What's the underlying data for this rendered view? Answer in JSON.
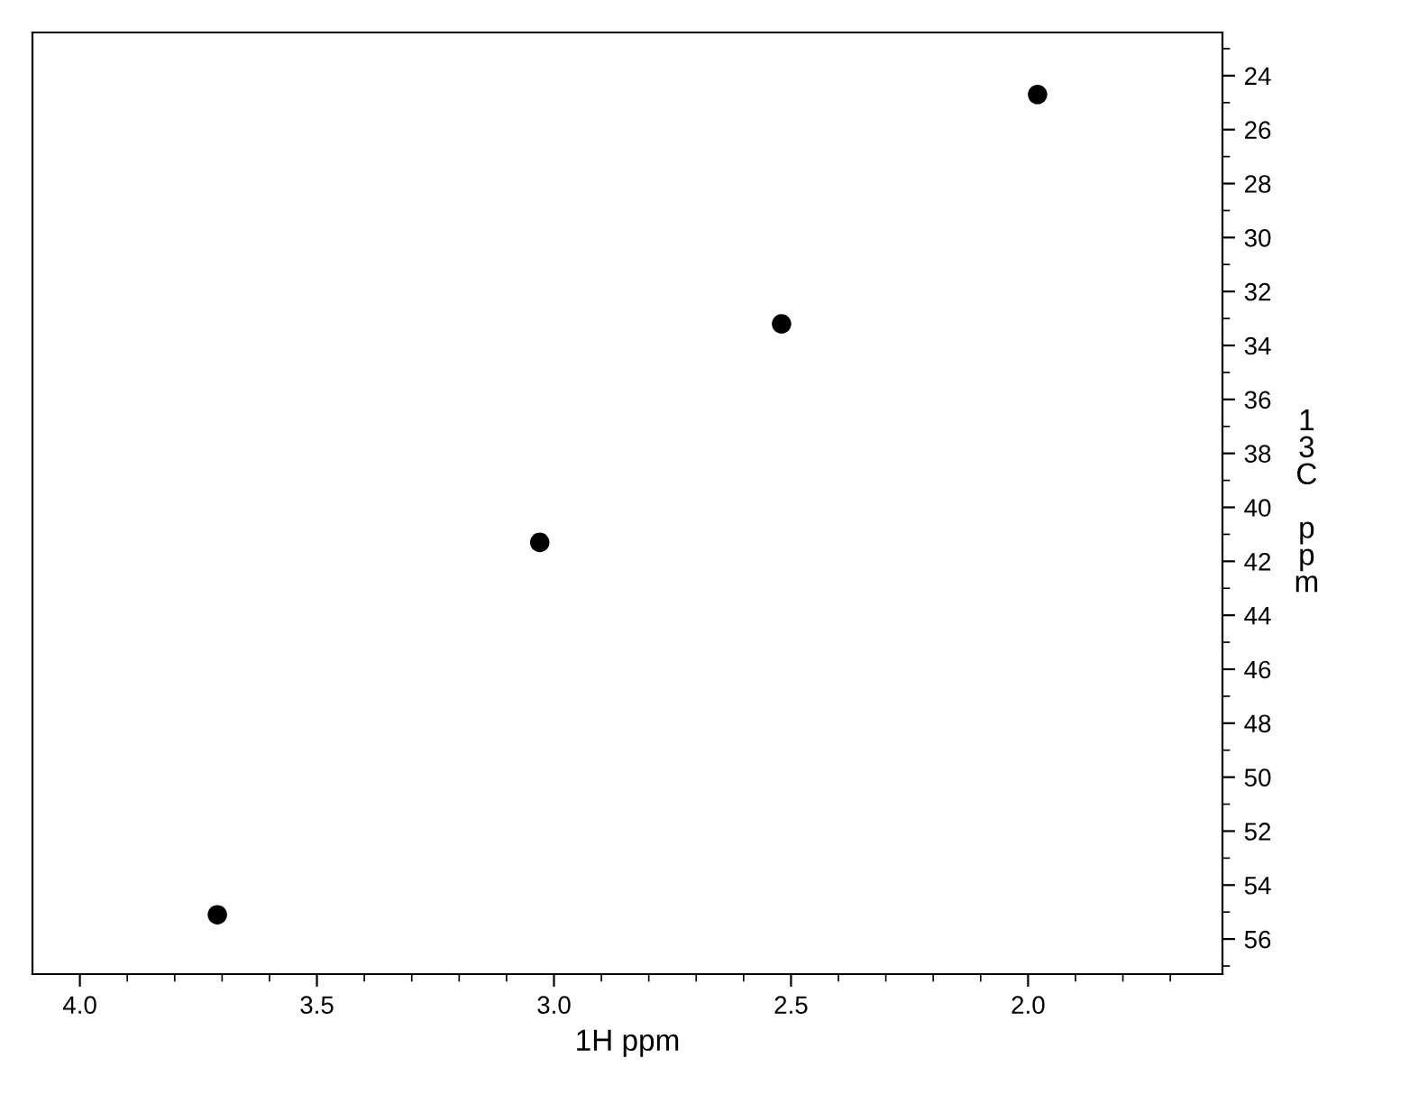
{
  "chart_data": {
    "type": "scatter",
    "xlabel": "1H ppm",
    "ylabel": "13C ppm",
    "x": [
      1.98,
      2.52,
      3.03,
      3.71
    ],
    "values": [
      24.7,
      33.2,
      41.3,
      55.1
    ],
    "color": "#000000",
    "marker": "circle",
    "grid": false,
    "xlim": [
      4.1,
      1.59
    ],
    "ylim": [
      57.3,
      22.4
    ],
    "xticks": [
      {
        "value": 4.0,
        "label": "4.0"
      },
      {
        "value": 3.5,
        "label": "3.5"
      },
      {
        "value": 3.0,
        "label": "3.0"
      },
      {
        "value": 2.5,
        "label": "2.5"
      },
      {
        "value": 2.0,
        "label": "2.0"
      },
      {
        "value": 3.9,
        "label": null
      },
      {
        "value": 3.8,
        "label": null
      },
      {
        "value": 3.7,
        "label": null
      },
      {
        "value": 3.6,
        "label": null
      },
      {
        "value": 3.4,
        "label": null
      },
      {
        "value": 3.3,
        "label": null
      },
      {
        "value": 3.2,
        "label": null
      },
      {
        "value": 3.1,
        "label": null
      },
      {
        "value": 2.9,
        "label": null
      },
      {
        "value": 2.8,
        "label": null
      },
      {
        "value": 2.7,
        "label": null
      },
      {
        "value": 2.6,
        "label": null
      },
      {
        "value": 2.4,
        "label": null
      },
      {
        "value": 2.3,
        "label": null
      },
      {
        "value": 2.2,
        "label": null
      },
      {
        "value": 2.1,
        "label": null
      },
      {
        "value": 1.9,
        "label": null
      },
      {
        "value": 1.8,
        "label": null
      },
      {
        "value": 1.7,
        "label": null
      }
    ],
    "yticks": [
      24,
      26,
      28,
      30,
      32,
      34,
      36,
      38,
      40,
      42,
      44,
      46,
      48,
      50,
      52,
      54,
      56,
      {
        "value": 23,
        "label": null
      },
      {
        "value": 25,
        "label": null
      },
      {
        "value": 27,
        "label": null
      },
      {
        "value": 29,
        "label": null
      },
      {
        "value": 31,
        "label": null
      },
      {
        "value": 33,
        "label": null
      },
      {
        "value": 35,
        "label": null
      },
      {
        "value": 37,
        "label": null
      },
      {
        "value": 39,
        "label": null
      },
      {
        "value": 41,
        "label": null
      },
      {
        "value": 43,
        "label": null
      },
      {
        "value": 45,
        "label": null
      },
      {
        "value": 47,
        "label": null
      },
      {
        "value": 49,
        "label": null
      },
      {
        "value": 51,
        "label": null
      },
      {
        "value": 53,
        "label": null
      },
      {
        "value": 55,
        "label": null
      },
      {
        "value": 57,
        "label": null
      }
    ]
  }
}
